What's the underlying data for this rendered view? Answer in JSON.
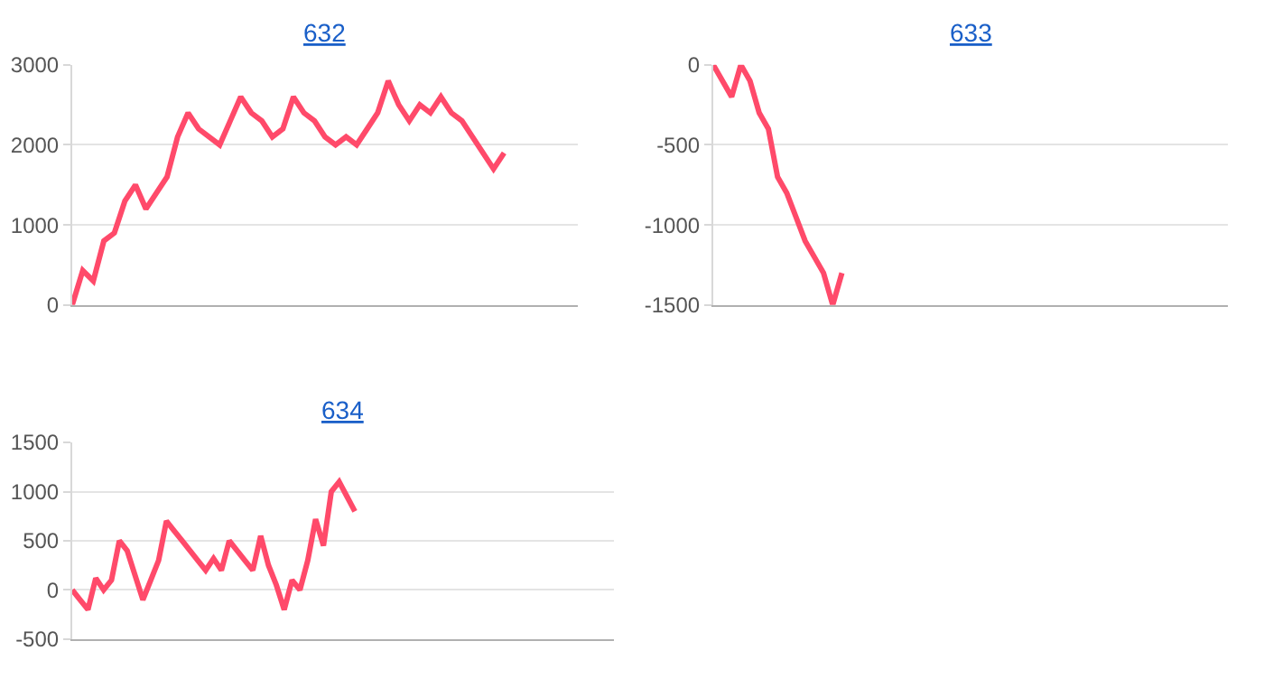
{
  "chart_data": [
    {
      "type": "line",
      "title": "632",
      "categories": [
        null,
        null,
        null,
        null,
        null,
        null,
        null,
        null,
        null,
        null,
        null,
        null,
        null,
        null,
        null,
        null,
        null,
        null,
        null,
        null,
        null,
        null,
        null,
        null,
        null,
        null,
        null,
        null,
        null,
        null,
        null,
        null,
        null,
        null,
        null,
        null,
        null,
        null,
        null,
        null,
        null,
        null,
        null,
        null,
        null,
        null,
        null,
        null,
        null
      ],
      "series": [
        {
          "color": "#ff4a6a",
          "values": [
            0,
            430,
            300,
            800,
            900,
            1300,
            1500,
            1200,
            1400,
            1600,
            2100,
            2400,
            2200,
            2100,
            2000,
            2300,
            2600,
            2400,
            2300,
            2100,
            2200,
            2600,
            2400,
            2300,
            2100,
            2000,
            2100,
            2000,
            2200,
            2400,
            2800,
            2500,
            2300,
            2500,
            2400,
            2600,
            2400,
            2300,
            2100,
            1900,
            1700,
            1900,
            null,
            null,
            null,
            null,
            null,
            null,
            null
          ]
        }
      ],
      "ylim": [
        0,
        3000
      ],
      "yticks": [
        0,
        1000,
        2000,
        3000
      ],
      "grid": "y",
      "tick_labels": "y",
      "marker": "none",
      "line_style": "solid"
    },
    {
      "type": "line",
      "title": "633",
      "categories": [
        null,
        null,
        null,
        null,
        null,
        null,
        null,
        null,
        null,
        null,
        null,
        null,
        null,
        null,
        null,
        null,
        null,
        null,
        null,
        null,
        null,
        null,
        null,
        null,
        null,
        null,
        null,
        null,
        null,
        null,
        null,
        null,
        null,
        null,
        null,
        null,
        null,
        null,
        null,
        null,
        null,
        null,
        null,
        null,
        null,
        null,
        null,
        null,
        null,
        null,
        null,
        null,
        null,
        null,
        null,
        null,
        null
      ],
      "series": [
        {
          "color": "#ff4a6a",
          "values": [
            0,
            -100,
            -200,
            0,
            -100,
            -300,
            -400,
            -700,
            -800,
            -950,
            -1100,
            -1200,
            -1300,
            -1500,
            -1300,
            null,
            null,
            null,
            null,
            null,
            null,
            null,
            null,
            null,
            null,
            null,
            null,
            null,
            null,
            null,
            null,
            null,
            null,
            null,
            null,
            null,
            null,
            null,
            null,
            null,
            null,
            null,
            null,
            null,
            null,
            null,
            null,
            null,
            null,
            null,
            null,
            null,
            null,
            null,
            null,
            null,
            null
          ]
        }
      ],
      "ylim": [
        -1500,
        0
      ],
      "yticks": [
        -1500,
        -1000,
        -500,
        0
      ],
      "grid": "y",
      "tick_labels": "y",
      "marker": "none",
      "line_style": "solid"
    },
    {
      "type": "line",
      "title": "634",
      "categories": [
        null,
        null,
        null,
        null,
        null,
        null,
        null,
        null,
        null,
        null,
        null,
        null,
        null,
        null,
        null,
        null,
        null,
        null,
        null,
        null,
        null,
        null,
        null,
        null,
        null,
        null,
        null,
        null,
        null,
        null,
        null,
        null,
        null,
        null,
        null,
        null,
        null,
        null,
        null,
        null,
        null,
        null,
        null,
        null,
        null,
        null,
        null,
        null,
        null,
        null,
        null,
        null,
        null,
        null,
        null,
        null,
        null,
        null,
        null,
        null,
        null,
        null,
        null,
        null,
        null,
        null,
        null,
        null,
        null,
        null
      ],
      "series": [
        {
          "color": "#ff4a6a",
          "values": [
            0,
            -100,
            -200,
            120,
            0,
            100,
            500,
            400,
            150,
            -100,
            100,
            300,
            700,
            600,
            500,
            400,
            300,
            200,
            320,
            200,
            500,
            400,
            300,
            200,
            550,
            250,
            50,
            -200,
            100,
            0,
            300,
            720,
            450,
            1000,
            1100,
            950,
            800,
            null,
            null,
            null,
            null,
            null,
            null,
            null,
            null,
            null,
            null,
            null,
            null,
            null,
            null,
            null,
            null,
            null,
            null,
            null,
            null,
            null,
            null,
            null,
            null,
            null,
            null,
            null,
            null,
            null,
            null,
            null,
            null,
            null
          ]
        }
      ],
      "ylim": [
        -500,
        1500
      ],
      "yticks": [
        -500,
        0,
        500,
        1000,
        1500
      ],
      "grid": "y",
      "tick_labels": "y",
      "marker": "none",
      "line_style": "solid"
    }
  ]
}
